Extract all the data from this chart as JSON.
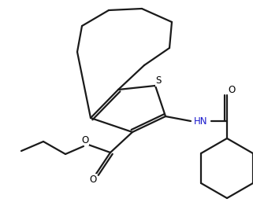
{
  "background_color": "#ffffff",
  "line_color": "#1a1a1a",
  "line_width": 1.6,
  "figsize": [
    3.21,
    2.76
  ],
  "dpi": 100,
  "xlim": [
    0,
    3.21
  ],
  "ylim": [
    0,
    2.76
  ],
  "S_color": "#000000",
  "HN_color": "#1a1acd",
  "O_color": "#000000",
  "S_fontsize": 8.5,
  "HN_fontsize": 8.5,
  "O_fontsize": 8.5
}
